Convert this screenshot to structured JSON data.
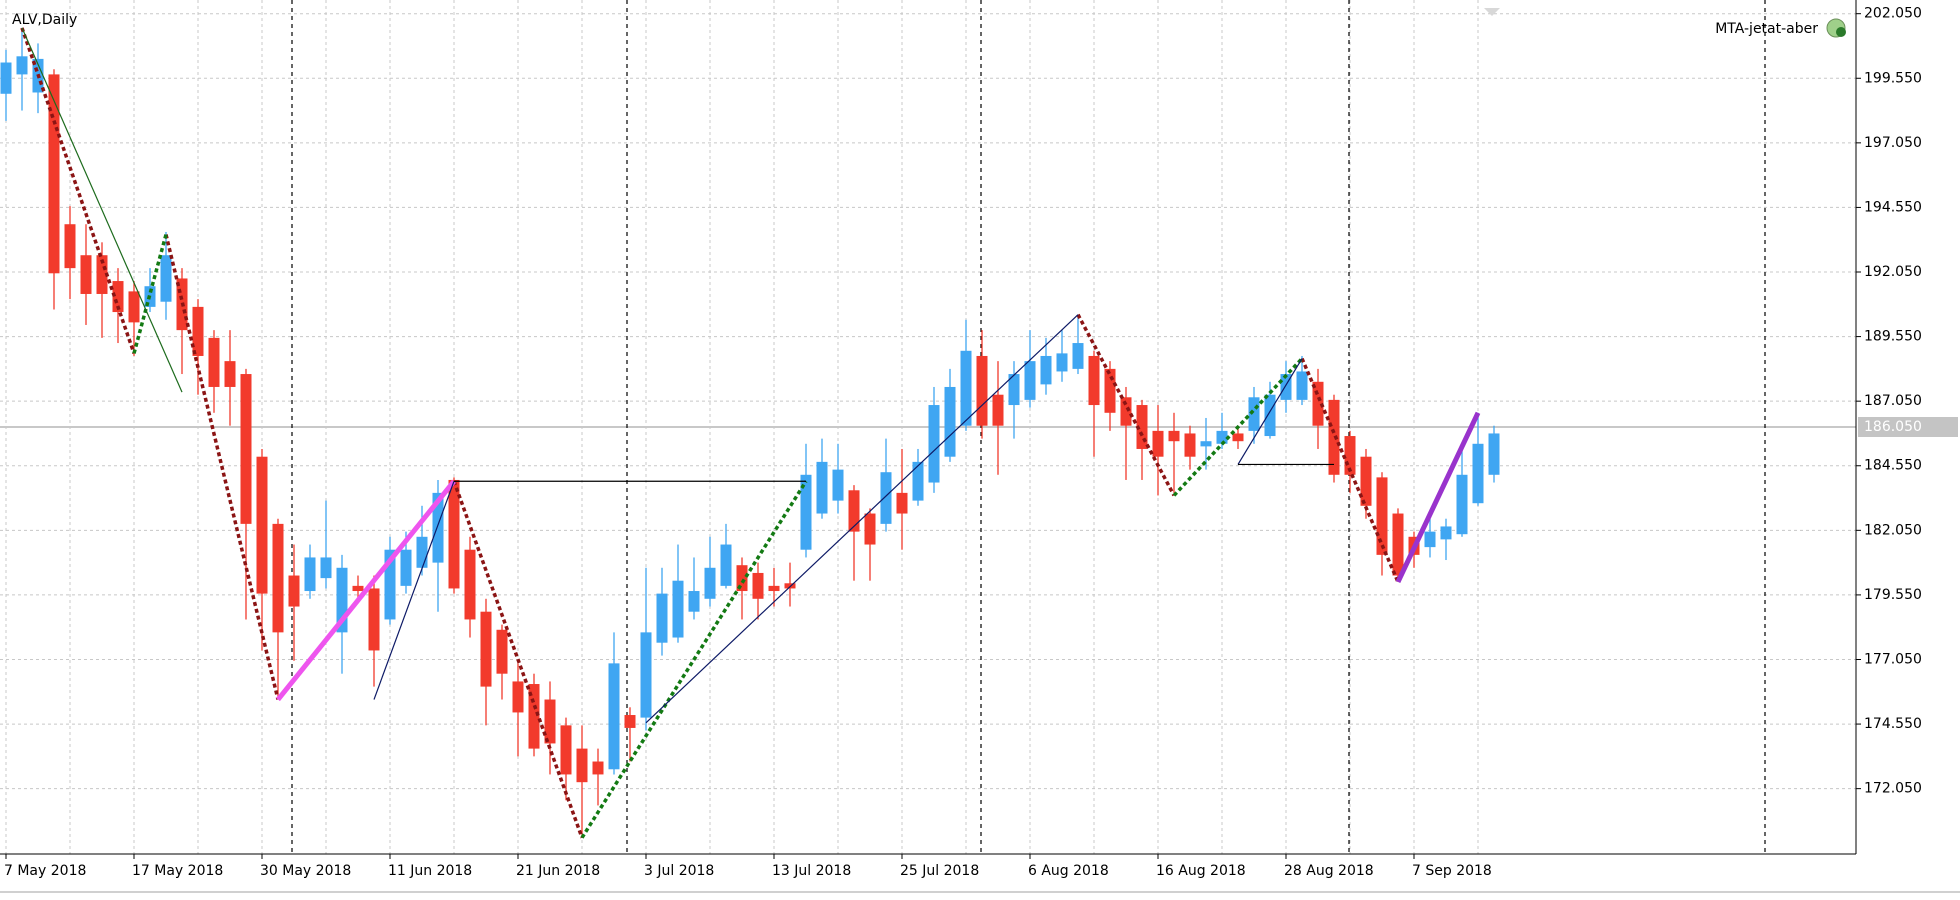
{
  "chart_data": {
    "type": "candlestick",
    "title": "ALV,Daily",
    "annotation": "MTA-jetat-aber",
    "categories": [
      "7 May 2018",
      null,
      null,
      null,
      null,
      null,
      null,
      null,
      "17 May 2018",
      null,
      null,
      null,
      null,
      null,
      null,
      null,
      "30 May 2018",
      null,
      null,
      null,
      null,
      null,
      null,
      null,
      "11 Jun 2018",
      null,
      null,
      null,
      null,
      null,
      null,
      null,
      "21 Jun 2018",
      null,
      null,
      null,
      null,
      null,
      null,
      null,
      "3 Jul 2018",
      null,
      null,
      null,
      null,
      null,
      null,
      null,
      "13 Jul 2018",
      null,
      null,
      null,
      null,
      null,
      null,
      null,
      "25 Jul 2018",
      null,
      null,
      null,
      null,
      null,
      null,
      null,
      "6 Aug 2018",
      null,
      null,
      null,
      null,
      null,
      null,
      null,
      "16 Aug 2018",
      null,
      null,
      null,
      null,
      null,
      null,
      null,
      "28 Aug 2018",
      null,
      null,
      null,
      null,
      null,
      null,
      null,
      "7 Sep 2018",
      null,
      null,
      null,
      null,
      null
    ],
    "open": [
      198.95,
      199.7,
      199.0,
      199.7,
      193.9,
      192.7,
      192.7,
      191.7,
      191.3,
      190.7,
      190.9,
      191.8,
      190.7,
      189.5,
      188.6,
      188.1,
      184.9,
      182.3,
      180.3,
      179.7,
      180.2,
      178.1,
      179.9,
      179.8,
      178.6,
      179.9,
      180.6,
      180.8,
      184.0,
      181.3,
      178.9,
      178.2,
      176.2,
      176.1,
      175.5,
      174.5,
      173.6,
      173.1,
      172.8,
      174.9,
      174.8,
      177.7,
      177.9,
      178.9,
      179.4,
      179.9,
      180.7,
      180.4,
      179.9,
      180.0,
      181.3,
      182.7,
      183.2,
      183.6,
      182.7,
      182.3,
      183.5,
      183.2,
      183.9,
      184.9,
      186.1,
      188.8,
      187.3,
      186.9,
      187.1,
      187.7,
      188.2,
      188.3,
      188.8,
      188.3,
      187.2,
      186.9,
      185.9,
      185.9,
      185.8,
      185.3,
      185.4,
      185.8,
      185.9,
      185.7,
      187.1,
      187.1,
      187.8,
      187.1,
      185.7,
      184.9,
      184.1,
      182.7,
      181.8,
      181.4,
      181.7,
      181.9,
      183.1,
      184.2
    ],
    "high": [
      200.65,
      201.5,
      200.9,
      199.9,
      194.6,
      193.9,
      193.2,
      192.2,
      191.7,
      192.2,
      193.6,
      192.2,
      191.0,
      189.8,
      189.8,
      188.3,
      185.2,
      182.5,
      181.5,
      181.5,
      183.2,
      181.1,
      180.3,
      180.3,
      181.8,
      182.0,
      183.0,
      184.0,
      184.1,
      181.8,
      179.4,
      178.4,
      176.9,
      176.5,
      176.2,
      174.8,
      174.5,
      173.6,
      178.1,
      175.2,
      180.6,
      180.6,
      181.5,
      181.0,
      181.8,
      182.3,
      181.0,
      180.8,
      180.6,
      180.8,
      185.4,
      185.6,
      185.4,
      183.8,
      182.9,
      185.6,
      185.2,
      185.2,
      187.6,
      188.3,
      190.2,
      189.8,
      188.6,
      188.6,
      189.8,
      189.5,
      189.8,
      190.4,
      189.0,
      188.6,
      187.6,
      187.1,
      186.9,
      186.6,
      186.1,
      186.4,
      186.6,
      186.1,
      187.6,
      187.8,
      188.6,
      188.8,
      188.3,
      187.3,
      185.9,
      185.2,
      184.3,
      182.9,
      182.0,
      182.5,
      182.5,
      185.2,
      186.6,
      186.1
    ],
    "low": [
      197.9,
      198.3,
      198.2,
      190.6,
      191.0,
      190.0,
      189.5,
      189.3,
      188.8,
      190.5,
      190.2,
      188.1,
      187.3,
      186.6,
      186.1,
      178.6,
      177.4,
      175.5,
      177.0,
      179.4,
      179.8,
      176.5,
      179.4,
      176.0,
      178.4,
      179.6,
      180.3,
      178.9,
      179.6,
      177.9,
      174.5,
      175.5,
      173.3,
      173.3,
      172.6,
      171.6,
      170.15,
      171.4,
      172.6,
      173.1,
      174.3,
      177.2,
      177.7,
      178.6,
      179.1,
      179.8,
      178.6,
      178.6,
      179.1,
      179.1,
      181.0,
      182.5,
      182.7,
      180.1,
      180.1,
      182.0,
      181.3,
      183.0,
      183.5,
      184.7,
      185.9,
      185.6,
      184.2,
      185.6,
      186.8,
      187.3,
      187.8,
      188.1,
      184.9,
      185.9,
      184.0,
      184.0,
      183.4,
      183.5,
      184.4,
      184.4,
      185.2,
      185.2,
      185.4,
      185.6,
      186.6,
      186.9,
      185.2,
      183.9,
      183.5,
      182.5,
      180.3,
      180.05,
      180.6,
      181.0,
      180.9,
      181.8,
      183.0,
      183.9
    ],
    "close": [
      200.16,
      200.4,
      200.3,
      192.0,
      192.2,
      191.2,
      191.2,
      190.5,
      190.1,
      191.5,
      192.7,
      189.8,
      188.8,
      187.6,
      187.6,
      182.3,
      179.6,
      178.1,
      179.1,
      181.0,
      181.0,
      180.6,
      179.7,
      177.4,
      181.3,
      181.3,
      181.8,
      183.5,
      179.8,
      178.6,
      176.0,
      176.5,
      175.0,
      173.6,
      173.8,
      172.6,
      172.3,
      172.6,
      176.9,
      174.4,
      178.1,
      179.6,
      180.1,
      179.7,
      180.6,
      181.5,
      179.7,
      179.4,
      179.7,
      179.8,
      184.2,
      184.7,
      184.4,
      182.0,
      181.5,
      184.3,
      182.7,
      184.7,
      186.9,
      187.6,
      189.0,
      186.1,
      186.1,
      188.1,
      188.6,
      188.8,
      188.9,
      189.3,
      186.9,
      186.6,
      186.1,
      185.2,
      184.9,
      185.5,
      184.9,
      185.5,
      185.9,
      185.5,
      187.2,
      187.3,
      188.1,
      188.2,
      186.1,
      184.2,
      184.2,
      183.0,
      181.1,
      180.3,
      181.1,
      182.0,
      182.2,
      184.2,
      185.4,
      185.8
    ],
    "up_color": "#3fa6f2",
    "down_color": "#f23a2c",
    "ylim": [
      169.52,
      202.58
    ],
    "yticks": [
      {
        "value": 172.05,
        "label": "172.050"
      },
      {
        "value": 174.55,
        "label": "174.550"
      },
      {
        "value": 177.05,
        "label": "177.050"
      },
      {
        "value": 179.55,
        "label": "179.550"
      },
      {
        "value": 182.05,
        "label": "182.050"
      },
      {
        "value": 184.55,
        "label": "184.550"
      },
      {
        "value": 187.05,
        "label": "187.050"
      },
      {
        "value": 189.55,
        "label": "189.550"
      },
      {
        "value": 192.05,
        "label": "192.050"
      },
      {
        "value": 194.55,
        "label": "194.550"
      },
      {
        "value": 197.05,
        "label": "197.050"
      },
      {
        "value": 199.55,
        "label": "199.550"
      },
      {
        "value": 202.05,
        "label": "202.050"
      }
    ],
    "current_price": {
      "value": 186.05,
      "label": "186.050"
    },
    "grid": true,
    "overlays": [
      {
        "color": "#8b1414",
        "style": "dashed",
        "x": [
          1,
          8
        ],
        "y": [
          201.5,
          188.9
        ]
      },
      {
        "color": "#8b1414",
        "style": "dashed",
        "x": [
          10,
          17
        ],
        "y": [
          193.5,
          175.5
        ]
      },
      {
        "color": "#8b1414",
        "style": "dashed",
        "x": [
          28,
          36
        ],
        "y": [
          183.95,
          170.15
        ]
      },
      {
        "color": "#8b1414",
        "style": "dashed",
        "x": [
          67,
          73
        ],
        "y": [
          190.4,
          183.4
        ]
      },
      {
        "color": "#8b1414",
        "style": "dashed",
        "x": [
          81,
          87
        ],
        "y": [
          188.7,
          180.05
        ]
      },
      {
        "color": "#137a13",
        "style": "dashed",
        "x": [
          8,
          10
        ],
        "y": [
          188.9,
          193.5
        ]
      },
      {
        "color": "#137a13",
        "style": "dashed",
        "x": [
          36,
          50
        ],
        "y": [
          170.15,
          183.95
        ]
      },
      {
        "color": "#137a13",
        "style": "dashed",
        "x": [
          73,
          81
        ],
        "y": [
          183.4,
          188.7
        ]
      },
      {
        "color": "#1d6b1d",
        "style": "thin",
        "x": [
          1,
          11
        ],
        "y": [
          201.5,
          187.4
        ]
      },
      {
        "color": "#ee55ee",
        "style": "thick",
        "x": [
          17,
          28
        ],
        "y": [
          175.5,
          183.95
        ]
      },
      {
        "color": "#0d1a66",
        "style": "thin",
        "x": [
          23,
          28
        ],
        "y": [
          175.5,
          183.95
        ]
      },
      {
        "color": "#0d1a66",
        "style": "thin",
        "x": [
          40,
          67
        ],
        "y": [
          174.6,
          190.4
        ]
      },
      {
        "color": "#0d1a66",
        "style": "thin",
        "x": [
          77,
          81
        ],
        "y": [
          184.6,
          188.7
        ]
      },
      {
        "color": "#000000",
        "style": "thin",
        "x": [
          28,
          50
        ],
        "y": [
          183.95,
          183.95
        ]
      },
      {
        "color": "#000000",
        "style": "thin",
        "x": [
          77,
          83
        ],
        "y": [
          184.6,
          184.6
        ]
      },
      {
        "color": "#9933cc",
        "style": "thick",
        "x": [
          87,
          92
        ],
        "y": [
          180.05,
          186.6
        ]
      }
    ]
  }
}
